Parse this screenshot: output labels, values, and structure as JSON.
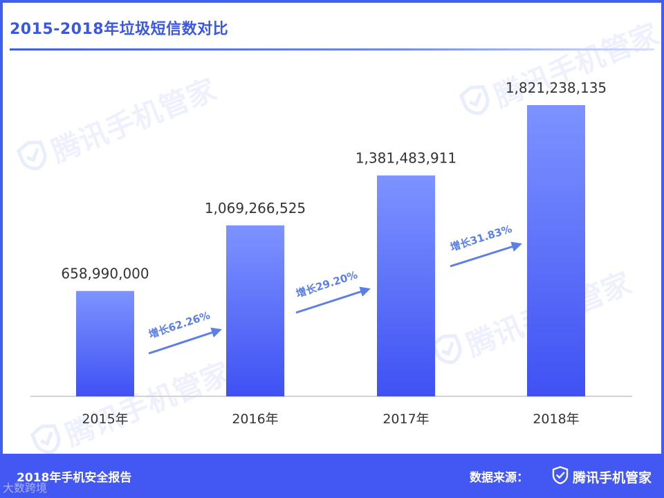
{
  "title": "2015-2018年垃圾短信数对比",
  "chart_data": {
    "type": "bar",
    "title": "2015-2018年垃圾短信数对比",
    "categories": [
      "2015年",
      "2016年",
      "2017年",
      "2018年"
    ],
    "values": [
      658990000,
      1069266525,
      1381483911,
      1821238135
    ],
    "value_labels": [
      "658,990,000",
      "1,069,266,525",
      "1,381,483,911",
      "1,821,238,135"
    ],
    "growth_annotations": [
      "增长62.26%",
      "增长29.20%",
      "增长31.83%"
    ],
    "xlabel": "",
    "ylabel": "",
    "ylim": [
      0,
      2000000000
    ],
    "grid": false,
    "colors": {
      "bar_top": "#7d93ff",
      "bar_bottom": "#3f51f3",
      "arrow": "#5b7fe8",
      "axis": "#d3d3d3"
    }
  },
  "watermark_text": "腾讯手机管家",
  "footer": {
    "report_name": "2018年手机安全报告",
    "source_label": "数据来源：",
    "brand_name": "腾讯手机管家",
    "credit_text": "大数跨境"
  }
}
